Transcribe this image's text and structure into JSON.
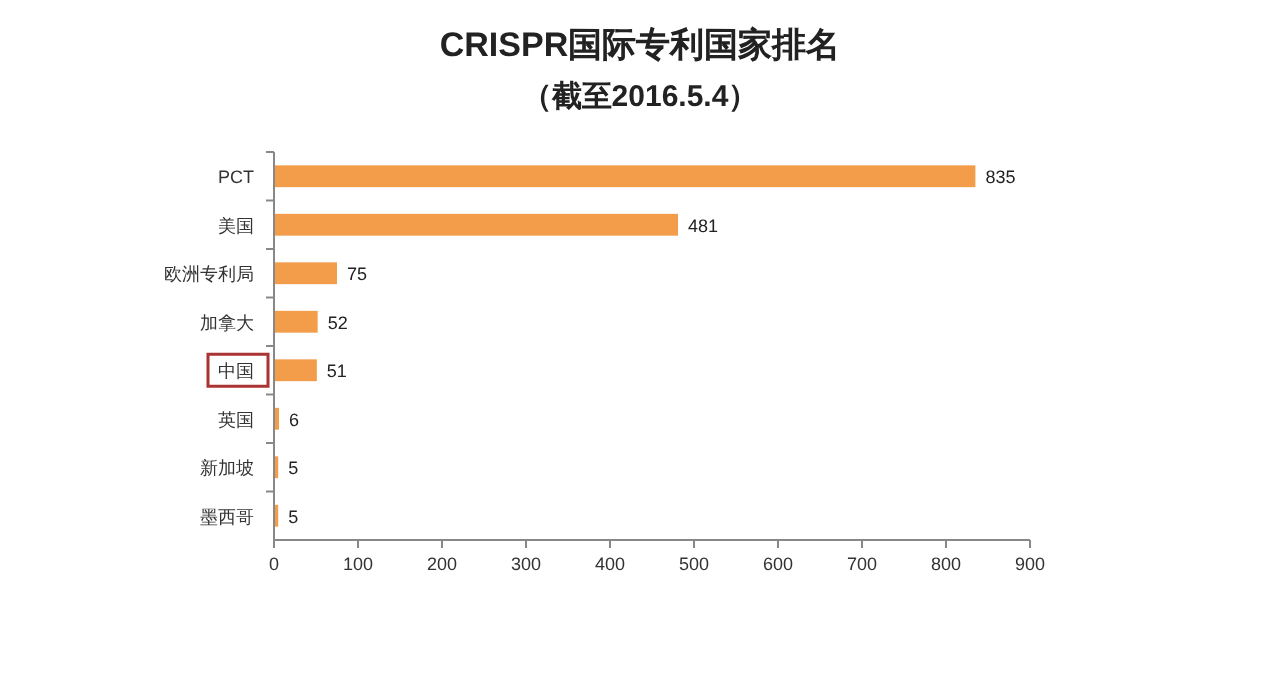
{
  "chart_data": {
    "type": "bar",
    "orientation": "horizontal",
    "title": "CRISPR国际专利国家排名",
    "subtitle": "（截至2016.5.4）",
    "categories": [
      "PCT",
      "美国",
      "欧洲专利局",
      "加拿大",
      "中国",
      "英国",
      "新加坡",
      "墨西哥"
    ],
    "values": [
      835,
      481,
      75,
      52,
      51,
      6,
      5,
      5
    ],
    "color": "#f39c4a",
    "xlim": [
      0,
      900
    ],
    "xticks": [
      0,
      100,
      200,
      300,
      400,
      500,
      600,
      700,
      800,
      900
    ],
    "data_labels": true,
    "grid": false
  }
}
